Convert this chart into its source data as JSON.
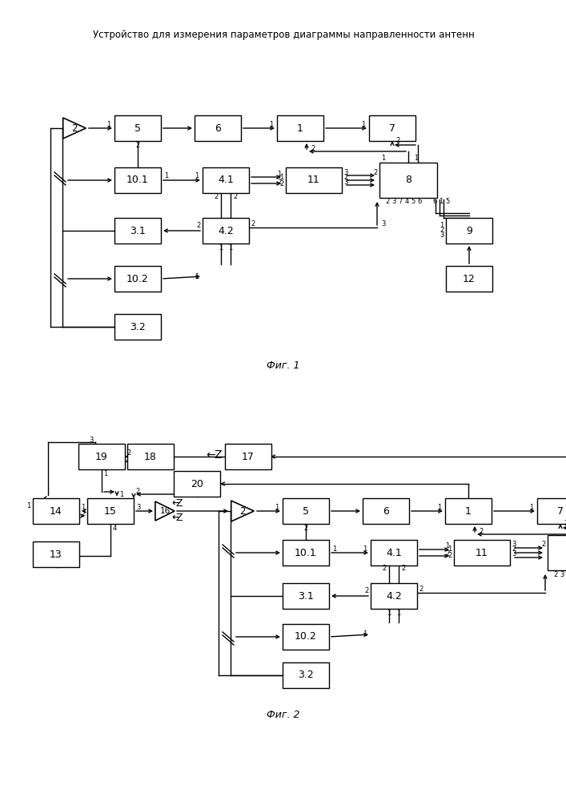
{
  "title": "Устройство для измерения параметров диаграммы направленности антенн",
  "fig1_label": "Фиг. 1",
  "fig2_label": "Фиг. 2",
  "bg_color": "#ffffff",
  "box_edge": "#000000",
  "line_color": "#000000",
  "text_color": "#000000"
}
